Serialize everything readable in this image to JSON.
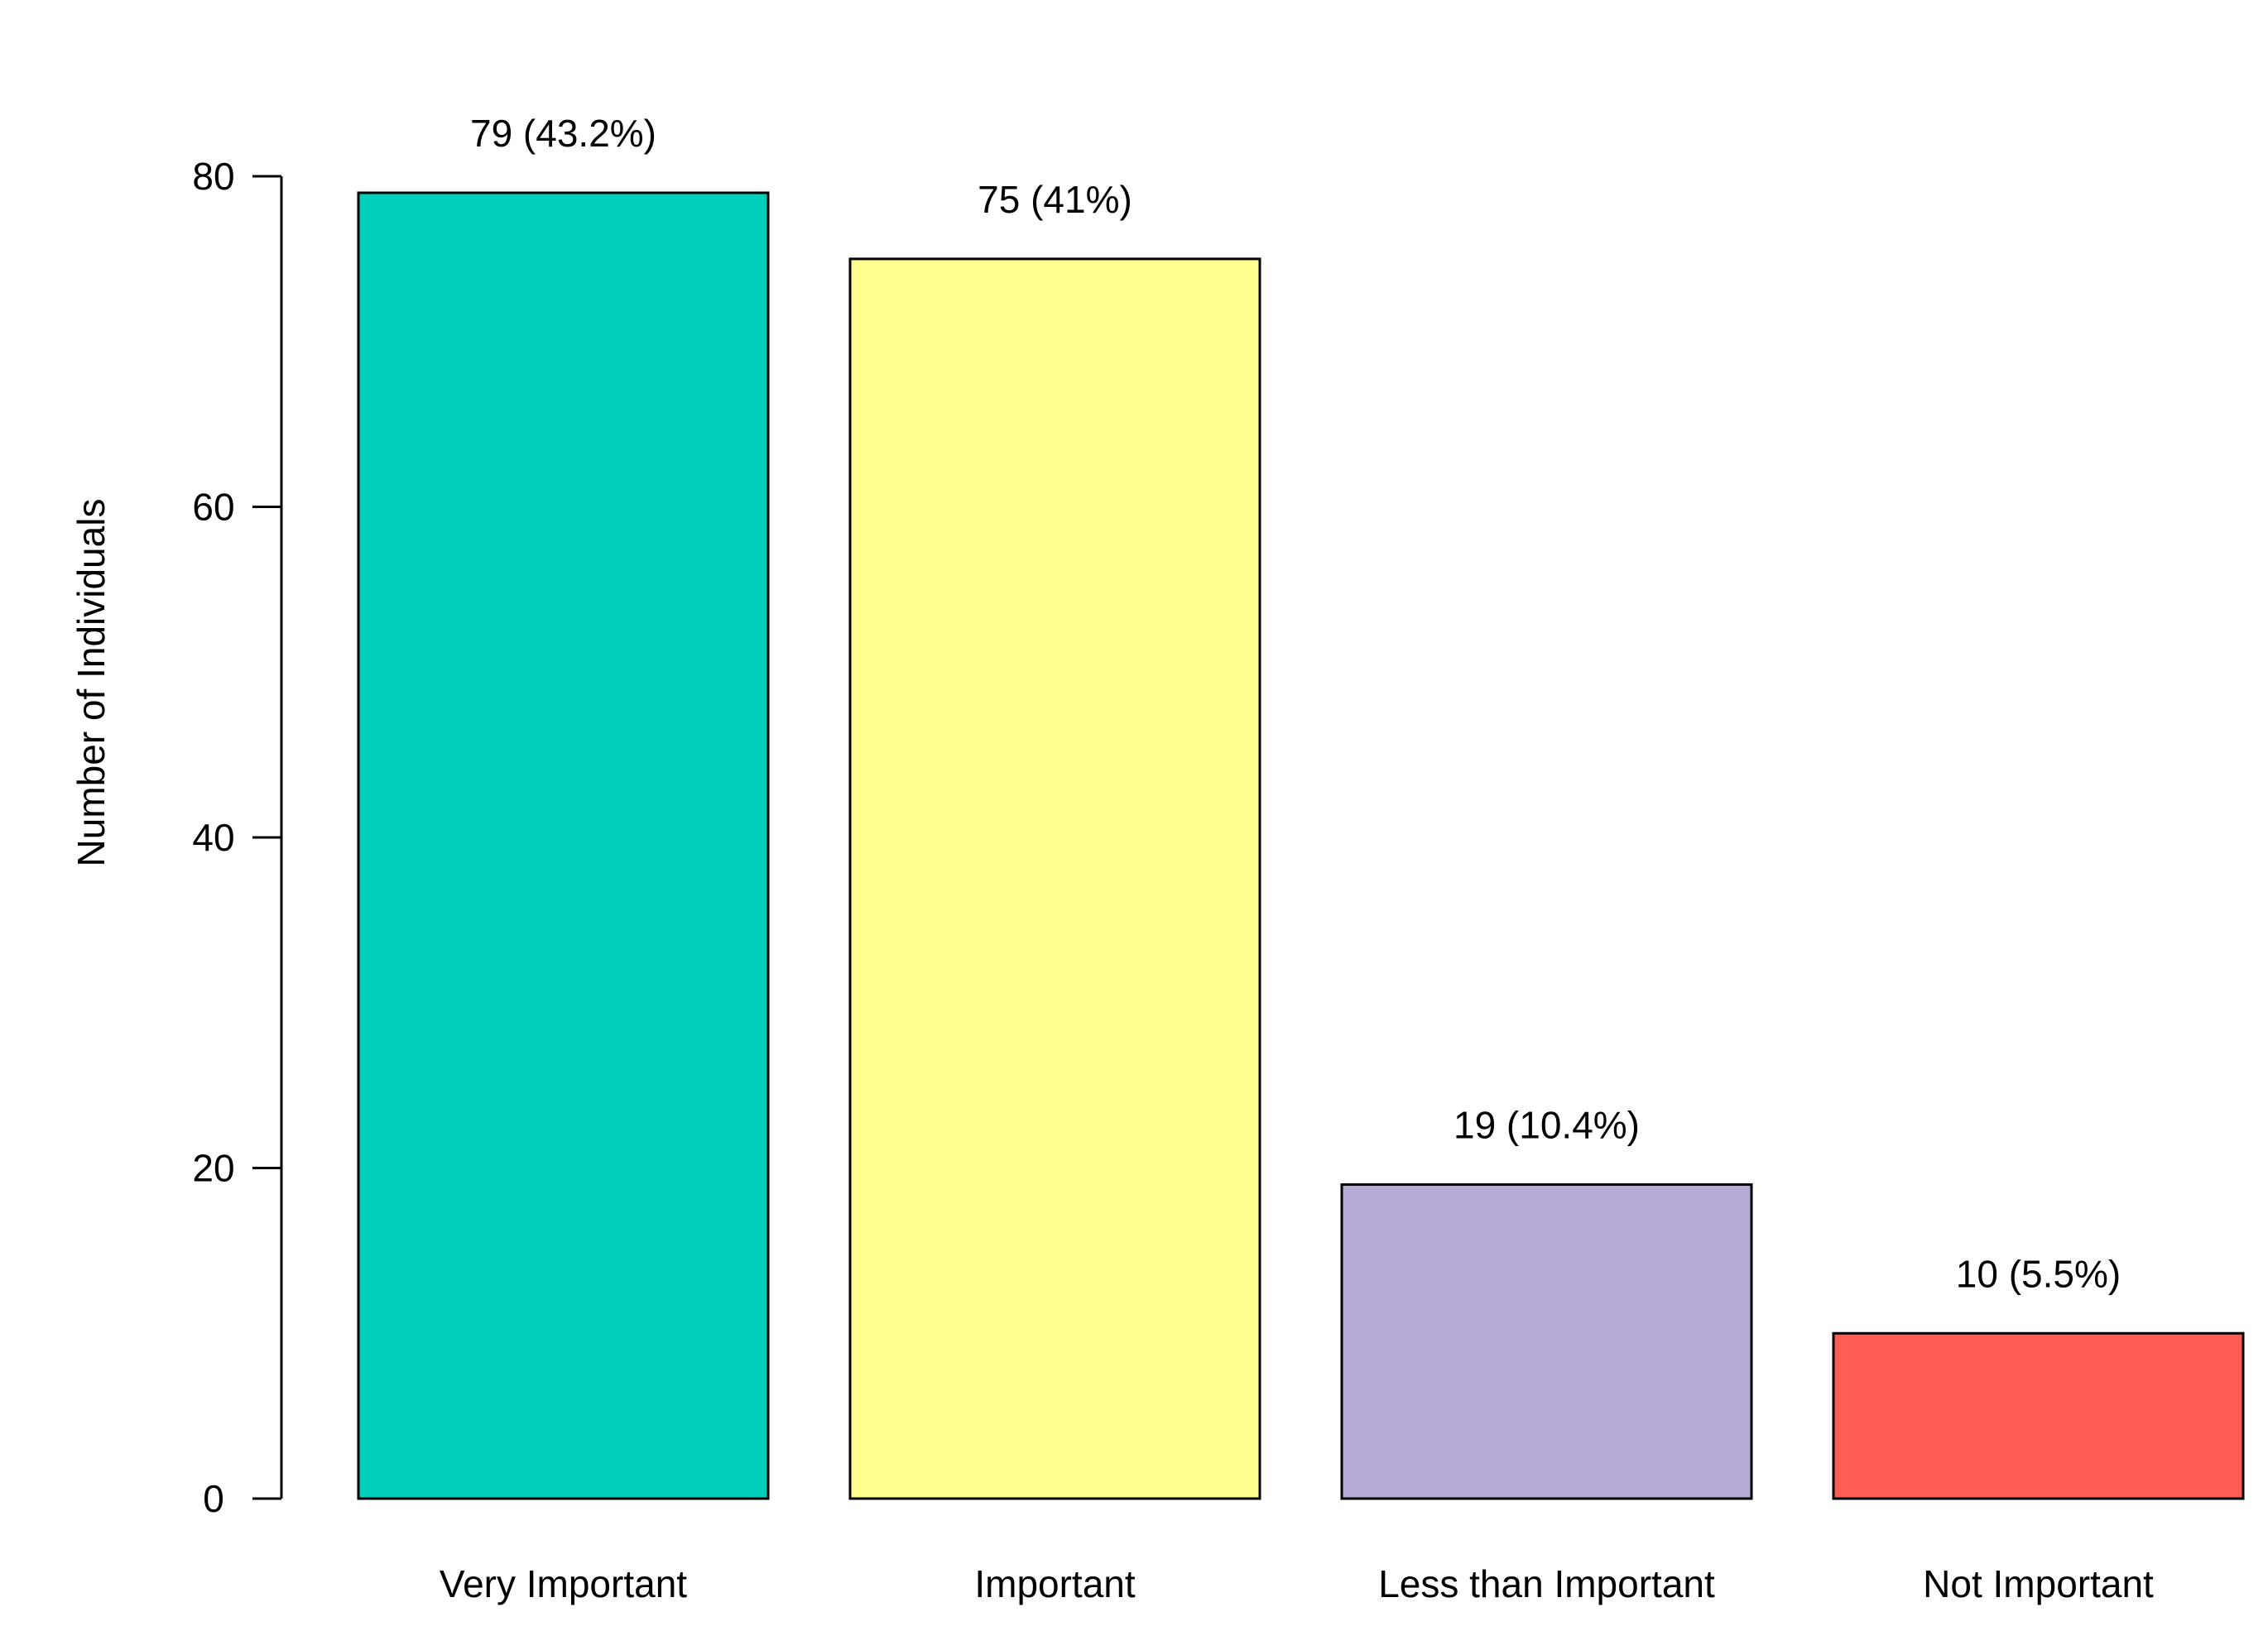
{
  "chart_data": {
    "type": "bar",
    "title": "",
    "xlabel": "",
    "ylabel": "Number of Individuals",
    "ylim": [
      0,
      80
    ],
    "yticks": [
      0,
      20,
      40,
      60,
      80
    ],
    "grid": false,
    "legend": "none",
    "categories": [
      "Very Important",
      "Important",
      "Less than Important",
      "Not Important"
    ],
    "values": [
      79,
      75,
      19,
      10
    ],
    "data_labels": [
      "79 (43.2%)",
      "75 (41%)",
      "19 (10.4%)",
      "10 (5.5%)"
    ],
    "colors": [
      "#00CFBB",
      "#FFFF8F",
      "#B5ABD6",
      "#FF5C55"
    ]
  }
}
